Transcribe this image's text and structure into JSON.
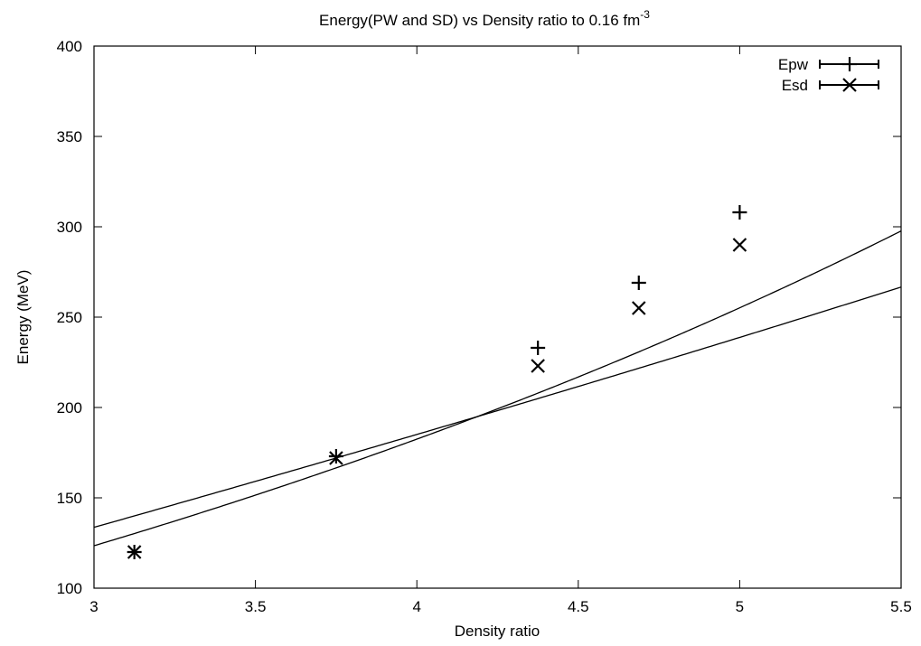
{
  "chart_data": {
    "type": "scatter",
    "title": "Energy(PW and SD) vs Density ratio to 0.16 fm",
    "title_superscript": "-3",
    "xlabel": "Density ratio",
    "ylabel": "Energy (MeV)",
    "xlim": [
      3,
      5.5
    ],
    "ylim": [
      100,
      400
    ],
    "xticks": [
      3,
      3.5,
      4,
      4.5,
      5,
      5.5
    ],
    "xtick_labels": [
      "3",
      "3.5",
      "4",
      "4.5",
      "5",
      "5.5"
    ],
    "yticks": [
      100,
      150,
      200,
      250,
      300,
      350,
      400
    ],
    "ytick_labels": [
      "100",
      "150",
      "200",
      "250",
      "300",
      "350",
      "400"
    ],
    "grid": false,
    "legend_position": "top-right",
    "series": [
      {
        "name": "Epw",
        "marker": "plus",
        "x": [
          3.125,
          3.75,
          4.375,
          4.6875,
          5.0
        ],
        "y": [
          120,
          173,
          233,
          269,
          308
        ],
        "fit_curve": {
          "a": 0.57,
          "b": 37.9,
          "c": -5.6,
          "color": "#000000"
        }
      },
      {
        "name": "Esd",
        "marker": "cross",
        "x": [
          3.125,
          3.75,
          4.375,
          4.6875,
          5.0
        ],
        "y": [
          120,
          172,
          223,
          255,
          290
        ],
        "fit_curve": {
          "a": 0.095,
          "b": 47.9,
          "c": -12.6,
          "color": "#000000"
        }
      }
    ]
  }
}
